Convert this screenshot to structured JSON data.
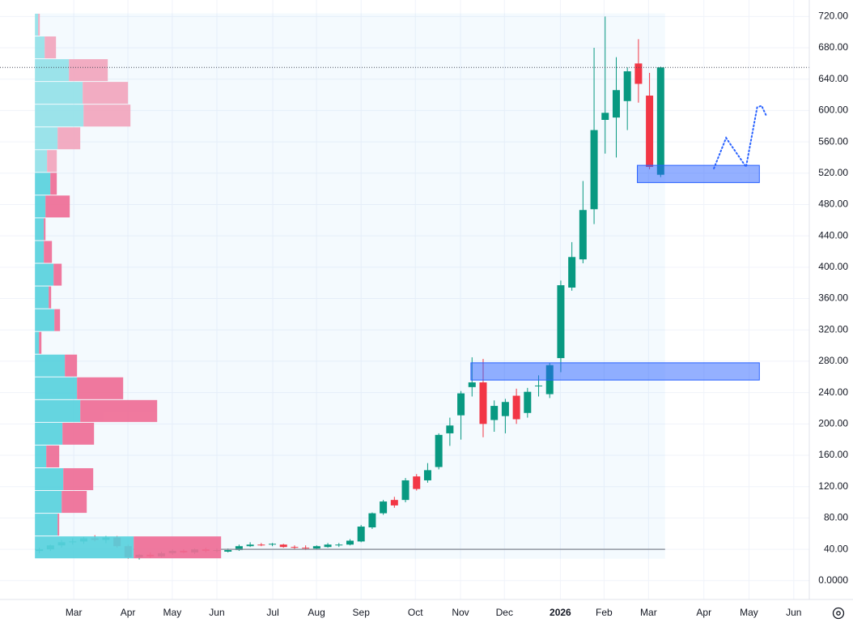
{
  "chart_data": {
    "type": "candlestick",
    "xlim": [
      -3.55,
      69.4
    ],
    "xticks": [
      {
        "value": 3.1,
        "label": "Mar"
      },
      {
        "value": 7.98,
        "label": "Apr"
      },
      {
        "value": 11.98,
        "label": "May"
      },
      {
        "value": 16,
        "label": "Jun"
      },
      {
        "value": 21.04,
        "label": "Jul"
      },
      {
        "value": 24.98,
        "label": "Aug"
      },
      {
        "value": 29,
        "label": "Sep"
      },
      {
        "value": 33.89,
        "label": "Oct"
      },
      {
        "value": 37.96,
        "label": "Nov"
      },
      {
        "value": 41.92,
        "label": "Dec"
      },
      {
        "value": 46.96,
        "label": "2026"
      },
      {
        "value": 50.9,
        "label": "Feb"
      },
      {
        "value": 54.91,
        "label": "Mar"
      },
      {
        "value": 59.9,
        "label": "Apr"
      },
      {
        "value": 63.96,
        "label": "May"
      },
      {
        "value": 68,
        "label": "Jun"
      }
    ],
    "ylim": [
      -24,
      741
    ],
    "yticks": [
      {
        "value": 0,
        "label": "0.0000"
      },
      {
        "value": 40,
        "label": "40.00"
      },
      {
        "value": 80,
        "label": "80.00"
      },
      {
        "value": 120,
        "label": "120.00"
      },
      {
        "value": 160,
        "label": "160.00"
      },
      {
        "value": 200,
        "label": "200.00"
      },
      {
        "value": 240,
        "label": "240.00"
      },
      {
        "value": 280,
        "label": "280.00"
      },
      {
        "value": 320,
        "label": "320.00"
      },
      {
        "value": 360,
        "label": "360.00"
      },
      {
        "value": 400,
        "label": "400.00"
      },
      {
        "value": 440,
        "label": "440.00"
      },
      {
        "value": 480,
        "label": "480.00"
      },
      {
        "value": 520,
        "label": "520.00"
      },
      {
        "value": 560,
        "label": "560.00"
      },
      {
        "value": 600,
        "label": "600.00"
      },
      {
        "value": 640,
        "label": "640.00"
      },
      {
        "value": 680,
        "label": "680.00"
      },
      {
        "value": 720,
        "label": "720.00"
      }
    ],
    "grid": true,
    "up_color": "#089981",
    "down_color": "#f23645",
    "open": [
      38,
      40,
      45,
      49,
      50,
      54,
      52,
      55,
      44,
      30,
      33,
      31,
      35,
      38,
      36,
      40,
      38,
      37,
      39,
      44,
      46,
      46,
      46,
      43,
      42,
      41,
      43,
      45,
      46,
      50,
      68,
      86,
      103,
      103,
      133,
      128,
      145,
      188,
      211,
      247,
      253,
      205,
      210,
      236,
      214,
      248,
      238,
      284,
      374,
      410,
      474,
      588,
      591,
      612,
      660,
      619,
      518
    ],
    "high": [
      42,
      46,
      52,
      54,
      56,
      58,
      57,
      57,
      46,
      34,
      36,
      37,
      40,
      40,
      41,
      42,
      41,
      41,
      46,
      49,
      48,
      48,
      47,
      45,
      45,
      45,
      48,
      48,
      53,
      71,
      87,
      103,
      107,
      131,
      136,
      150,
      188,
      208,
      242,
      285,
      283,
      230,
      232,
      245,
      246,
      262,
      278,
      383,
      432,
      510,
      680,
      720,
      668,
      655,
      691,
      648,
      656
    ],
    "low": [
      35,
      38,
      42,
      46,
      47,
      50,
      48,
      42,
      28,
      27,
      29,
      30,
      33,
      35,
      34,
      36,
      36,
      36,
      38,
      43,
      44,
      44,
      42,
      40,
      39,
      40,
      42,
      43,
      45,
      49,
      66,
      84,
      93,
      100,
      115,
      125,
      142,
      172,
      180,
      235,
      183,
      190,
      188,
      200,
      208,
      235,
      233,
      266,
      370,
      405,
      455,
      545,
      540,
      575,
      610,
      525,
      515
    ],
    "close": [
      40,
      45,
      49,
      50,
      54,
      52,
      55,
      44,
      30,
      33,
      31,
      35,
      38,
      36,
      40,
      38,
      39,
      39,
      44,
      46,
      45,
      47,
      43,
      42,
      41,
      44,
      46,
      46,
      51,
      69,
      86,
      101,
      96,
      128,
      117,
      141,
      186,
      198,
      239,
      253,
      200,
      223,
      228,
      206,
      241,
      249,
      275,
      377,
      413,
      473,
      575,
      597,
      626,
      650,
      634,
      528,
      655
    ],
    "volume_profile": {
      "bins": [
        28,
        57,
        86,
        115,
        144,
        173,
        202,
        231,
        260,
        289,
        318,
        347,
        376,
        405,
        434,
        463,
        492,
        521,
        550,
        579,
        608,
        637,
        666,
        695,
        724
      ],
      "value_area": [
        28,
        521
      ],
      "up": {
        "color": "#59d2de",
        "outside_color": "#94e2e9",
        "values": [
          122,
          28,
          33,
          35,
          14,
          34,
          56,
          52,
          37,
          5,
          24,
          17,
          23,
          11,
          11,
          13,
          19,
          15,
          28,
          60,
          59,
          42,
          12,
          4
        ]
      },
      "down": {
        "color": "#ef6e96",
        "outside_color": "#f2a6bd",
        "values": [
          108,
          2,
          31,
          37,
          16,
          39,
          95,
          57,
          15,
          3,
          7,
          3,
          10,
          10,
          2,
          30,
          8,
          12,
          28,
          58,
          56,
          48,
          14,
          2
        ]
      }
    },
    "poc": 40,
    "shapes": [
      {
        "x": [
          38.9,
          64.9
        ],
        "y": [
          256,
          278
        ],
        "color": "#2962ff"
      },
      {
        "x": [
          53.9,
          64.9
        ],
        "y": [
          508,
          530
        ],
        "color": "#2962ff"
      }
    ],
    "forecast": {
      "color": "#2962ff",
      "x": [
        60.8,
        61.9,
        63.7,
        64.7,
        65.1,
        65.5
      ],
      "y": [
        526,
        565,
        528,
        604,
        606,
        594
      ]
    }
  }
}
